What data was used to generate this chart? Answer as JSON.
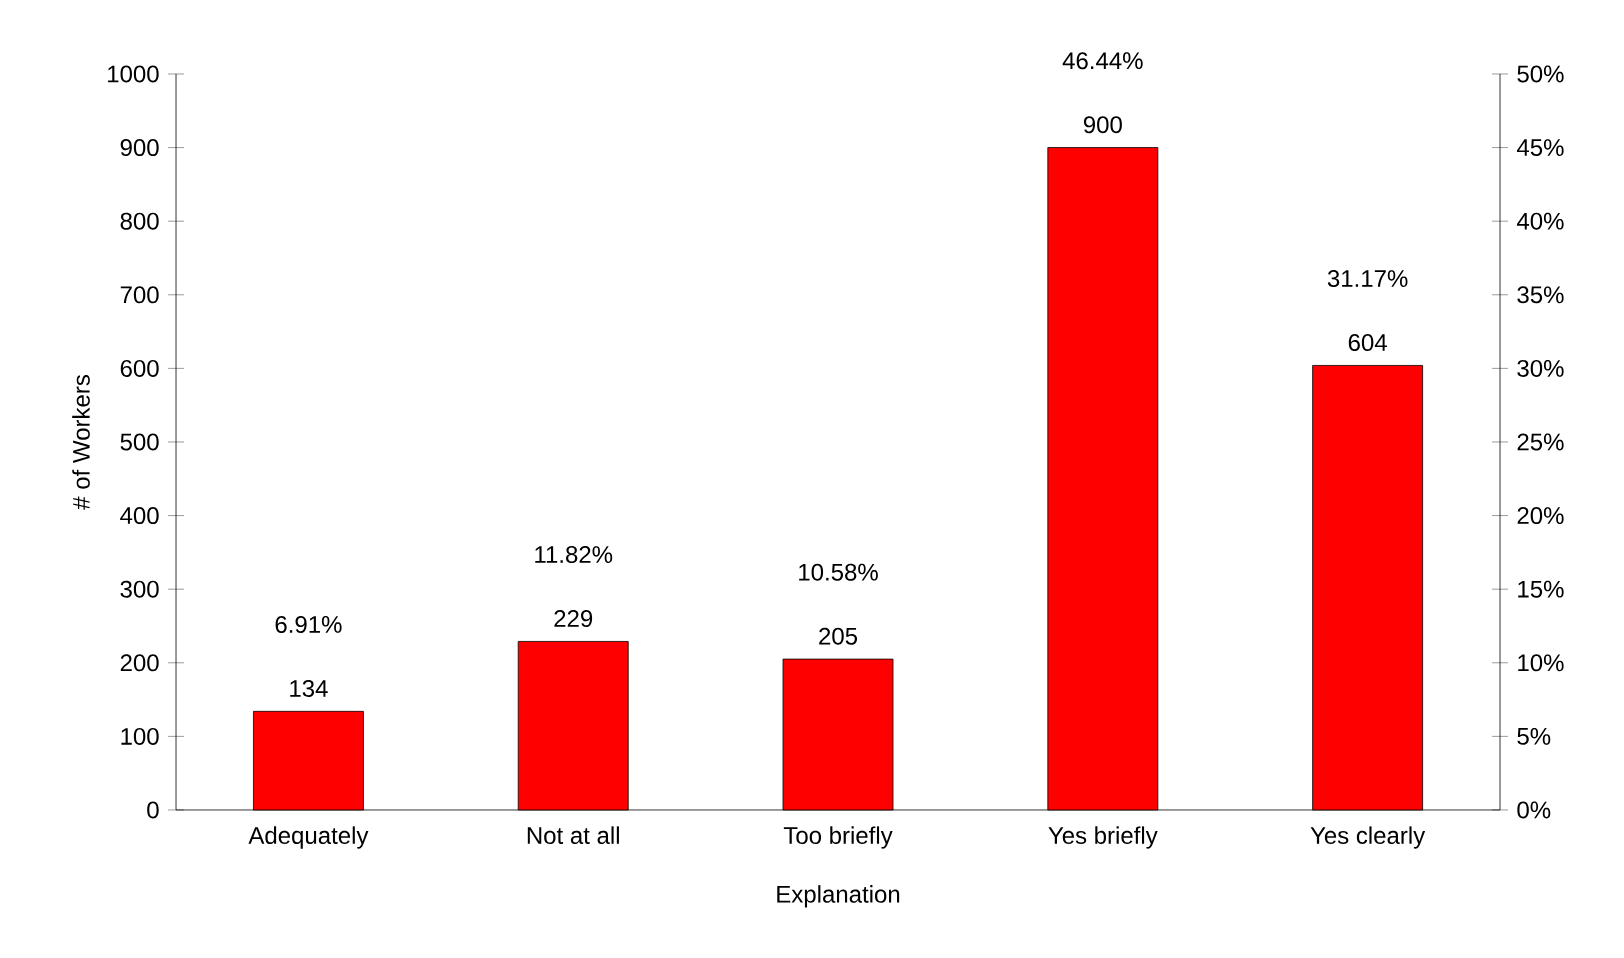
{
  "chart_data": {
    "type": "bar",
    "xlabel": "Explanation",
    "ylabel": "# of Workers",
    "categories": [
      "Adequately",
      "Not at all",
      "Too briefly",
      "Yes briefly",
      "Yes clearly"
    ],
    "values": [
      134,
      229,
      205,
      900,
      604
    ],
    "color": "#ff0000",
    "data_labels": true,
    "ylim": [
      0,
      1000
    ],
    "yticks": [
      0,
      100,
      200,
      300,
      400,
      500,
      600,
      700,
      800,
      900,
      1000
    ],
    "y2lim": [
      0,
      50
    ],
    "y2ticks": [
      {
        "value": 0,
        "label": "0%"
      },
      {
        "value": 5,
        "label": "5%"
      },
      {
        "value": 10,
        "label": "10%"
      },
      {
        "value": 15,
        "label": "15%"
      },
      {
        "value": 20,
        "label": "20%"
      },
      {
        "value": 25,
        "label": "25%"
      },
      {
        "value": 30,
        "label": "30%"
      },
      {
        "value": 35,
        "label": "35%"
      },
      {
        "value": 40,
        "label": "40%"
      },
      {
        "value": 45,
        "label": "45%"
      },
      {
        "value": 50,
        "label": "50%"
      }
    ],
    "annotations": [
      "6.91%",
      "11.82%",
      "10.58%",
      "46.44%",
      "31.17%"
    ],
    "grid": false
  }
}
